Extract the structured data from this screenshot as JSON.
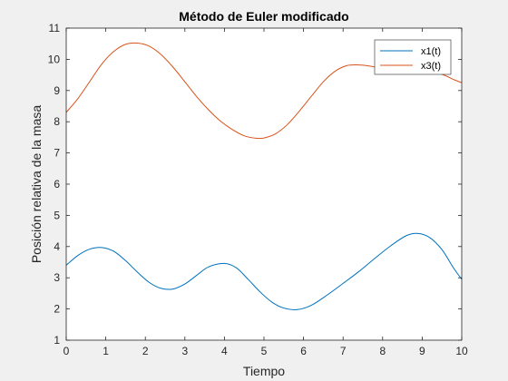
{
  "colors": {
    "figure_bg": "#f0f0f0",
    "axes_bg": "#ffffff",
    "axis": "#262626",
    "x1": "#0072bd",
    "x3": "#d95319"
  },
  "chart_data": {
    "type": "line",
    "title": "Método de Euler modificado",
    "xlabel": "Tiempo",
    "ylabel": "Posición relativa de la masa",
    "xlim": [
      0,
      10
    ],
    "ylim": [
      1,
      11
    ],
    "xticks": [
      0,
      1,
      2,
      3,
      4,
      5,
      6,
      7,
      8,
      9,
      10
    ],
    "yticks": [
      1,
      2,
      3,
      4,
      5,
      6,
      7,
      8,
      9,
      10,
      11
    ],
    "grid": false,
    "legend_position": "top-right",
    "series": [
      {
        "name": "x1(t)",
        "color": "#0072bd",
        "x": [
          0,
          0.3,
          0.6,
          0.9,
          1.2,
          1.5,
          1.8,
          2.1,
          2.4,
          2.7,
          3.0,
          3.3,
          3.6,
          4.0,
          4.3,
          4.6,
          4.9,
          5.2,
          5.5,
          5.85,
          6.2,
          6.6,
          7.0,
          7.4,
          7.8,
          8.2,
          8.6,
          8.9,
          9.2,
          9.5,
          9.8,
          10.0
        ],
        "y": [
          3.4,
          3.72,
          3.92,
          3.97,
          3.85,
          3.55,
          3.18,
          2.85,
          2.66,
          2.64,
          2.8,
          3.08,
          3.35,
          3.46,
          3.32,
          2.95,
          2.55,
          2.22,
          2.03,
          1.98,
          2.12,
          2.45,
          2.82,
          3.2,
          3.62,
          4.02,
          4.35,
          4.42,
          4.28,
          3.9,
          3.3,
          2.95
        ]
      },
      {
        "name": "x3(t)",
        "color": "#d95319",
        "x": [
          0,
          0.3,
          0.6,
          0.9,
          1.2,
          1.5,
          1.8,
          2.1,
          2.4,
          2.7,
          3.0,
          3.3,
          3.6,
          3.9,
          4.2,
          4.5,
          4.8,
          5.0,
          5.3,
          5.6,
          5.9,
          6.2,
          6.5,
          6.8,
          7.1,
          7.4,
          7.7,
          8.0,
          8.3,
          8.6,
          8.9,
          9.2,
          9.5,
          9.8,
          10.0
        ],
        "y": [
          8.3,
          8.75,
          9.3,
          9.85,
          10.25,
          10.48,
          10.52,
          10.42,
          10.15,
          9.75,
          9.28,
          8.8,
          8.38,
          8.02,
          7.75,
          7.55,
          7.47,
          7.48,
          7.62,
          7.92,
          8.35,
          8.82,
          9.28,
          9.62,
          9.8,
          9.82,
          9.78,
          9.7,
          9.63,
          9.6,
          9.6,
          9.6,
          9.52,
          9.35,
          9.25
        ]
      }
    ]
  }
}
